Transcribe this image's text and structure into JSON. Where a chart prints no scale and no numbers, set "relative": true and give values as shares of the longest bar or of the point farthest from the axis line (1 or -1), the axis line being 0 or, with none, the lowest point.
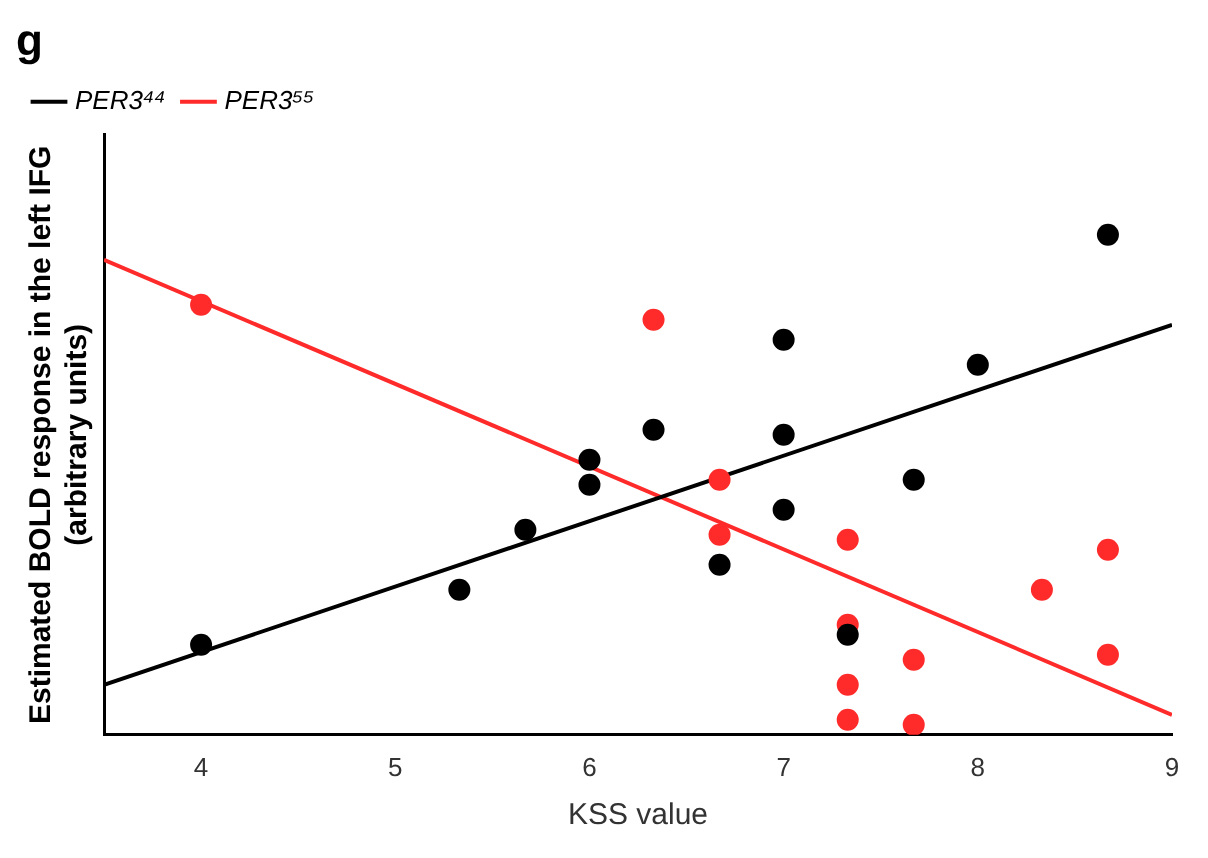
{
  "chart_data": {
    "type": "scatter",
    "title": "g",
    "xlabel": "KSS value",
    "ylabel": "Estimated BOLD response in the left IFG\n(arbitrary units)",
    "relative": true,
    "xlim": [
      3.5,
      9
    ],
    "xticks": [
      4,
      5,
      6,
      7,
      8,
      9
    ],
    "legend": "top left",
    "marker": "circle",
    "grid": false,
    "series": [
      {
        "name": "PER3⁴⁴",
        "color": "#000000",
        "x": [
          4,
          5.33,
          5.67,
          6,
          6,
          6.33,
          6.67,
          7,
          7,
          7,
          7.33,
          7.67,
          8,
          8.67
        ],
        "values": [
          0.18,
          0.29,
          0.41,
          0.5,
          0.55,
          0.61,
          0.34,
          0.79,
          0.6,
          0.45,
          0.2,
          0.51,
          0.74,
          1
        ]
      },
      {
        "name": "PER3⁵⁵",
        "color": "#ff2a2a",
        "x": [
          4,
          6.33,
          6.67,
          6.67,
          7.33,
          7.33,
          7.33,
          7.33,
          7.67,
          7.67,
          8.33,
          8.67,
          8.67
        ],
        "values": [
          0.86,
          0.83,
          0.51,
          0.4,
          0.39,
          0.22,
          0.1,
          0.03,
          0.15,
          0.02,
          0.29,
          0.37,
          0.16
        ]
      },
      {
        "type": "line",
        "color": "#000000",
        "x": [
          3.5,
          9
        ],
        "values": [
          0.1,
          0.82
        ],
        "marker": "none"
      },
      {
        "type": "line",
        "color": "#ff2a2a",
        "x": [
          3.5,
          9
        ],
        "values": [
          0.95,
          0.04
        ],
        "marker": "none"
      }
    ]
  }
}
